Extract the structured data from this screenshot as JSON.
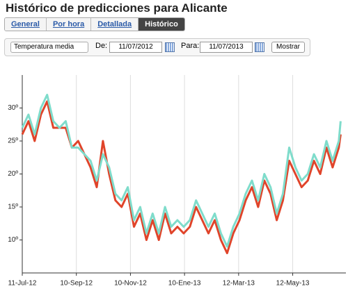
{
  "header": {
    "title": "Histórico de predicciones para Alicante"
  },
  "tabs": [
    "General",
    "Por hora",
    "Detallada",
    "Histórico"
  ],
  "controls": {
    "variable": "Temperatura media",
    "from_label": "De:",
    "from_value": "11/07/2012",
    "to_label": "Para:",
    "to_value": "11/07/2013",
    "button": "Mostrar"
  },
  "chart_data": {
    "type": "line",
    "x": [
      "2012-07-11",
      "2012-07-18",
      "2012-07-25",
      "2012-08-01",
      "2012-08-08",
      "2012-08-15",
      "2012-08-22",
      "2012-08-29",
      "2012-09-05",
      "2012-09-12",
      "2012-09-19",
      "2012-09-26",
      "2012-10-03",
      "2012-10-10",
      "2012-10-17",
      "2012-10-24",
      "2012-10-31",
      "2012-11-07",
      "2012-11-14",
      "2012-11-21",
      "2012-11-28",
      "2012-12-05",
      "2012-12-12",
      "2012-12-19",
      "2012-12-26",
      "2013-01-02",
      "2013-01-09",
      "2013-01-16",
      "2013-01-23",
      "2013-01-30",
      "2013-02-06",
      "2013-02-13",
      "2013-02-20",
      "2013-02-27",
      "2013-03-06",
      "2013-03-13",
      "2013-03-20",
      "2013-03-27",
      "2013-04-03",
      "2013-04-10",
      "2013-04-17",
      "2013-04-24",
      "2013-05-01",
      "2013-05-08",
      "2013-05-15",
      "2013-05-22",
      "2013-05-29",
      "2013-06-05",
      "2013-06-12",
      "2013-06-19",
      "2013-06-26",
      "2013-07-03",
      "2013-07-05"
    ],
    "series": [
      {
        "color": "#e0442a",
        "values": [
          26,
          28,
          25,
          29,
          31,
          27,
          27,
          27,
          24,
          25,
          23,
          21,
          18,
          25,
          20,
          16,
          15,
          17,
          12,
          14,
          10,
          13,
          10,
          14,
          11,
          12,
          11,
          12,
          15,
          13,
          11,
          13,
          10,
          8,
          11,
          13,
          16,
          18,
          15,
          19,
          17,
          13,
          16,
          22,
          20,
          18,
          19,
          22,
          20,
          24,
          21,
          24,
          26
        ]
      },
      {
        "color": "#7fdccb",
        "values": [
          27,
          29,
          26,
          30,
          32,
          28,
          27,
          28,
          24,
          24,
          23,
          22,
          19,
          23,
          21,
          17,
          16,
          18,
          13,
          15,
          11,
          14,
          11,
          15,
          12,
          13,
          12,
          13,
          16,
          14,
          12,
          14,
          11,
          9,
          12,
          14,
          17,
          19,
          16,
          20,
          18,
          14,
          17,
          24,
          21,
          19,
          20,
          23,
          21,
          25,
          22,
          25,
          28
        ]
      }
    ],
    "xlim": [
      "2012-07-11",
      "2013-07-11"
    ],
    "xticks": [
      {
        "value": "2012-07-11",
        "label": "11-Jul-12"
      },
      {
        "value": "2012-09-10",
        "label": "10-Sep-12"
      },
      {
        "value": "2012-11-10",
        "label": "10-Nov-12"
      },
      {
        "value": "2013-01-10",
        "label": "10-Ene-13"
      },
      {
        "value": "2013-03-12",
        "label": "12-Mar-13"
      },
      {
        "value": "2013-05-12",
        "label": "12-May-13"
      }
    ],
    "ylim": [
      5,
      35
    ],
    "yticks": [
      {
        "value": 10,
        "label": "10º"
      },
      {
        "value": 15,
        "label": "15º"
      },
      {
        "value": 20,
        "label": "20º"
      },
      {
        "value": 25,
        "label": "25º"
      },
      {
        "value": 30,
        "label": "30º"
      }
    ],
    "grid": true
  }
}
